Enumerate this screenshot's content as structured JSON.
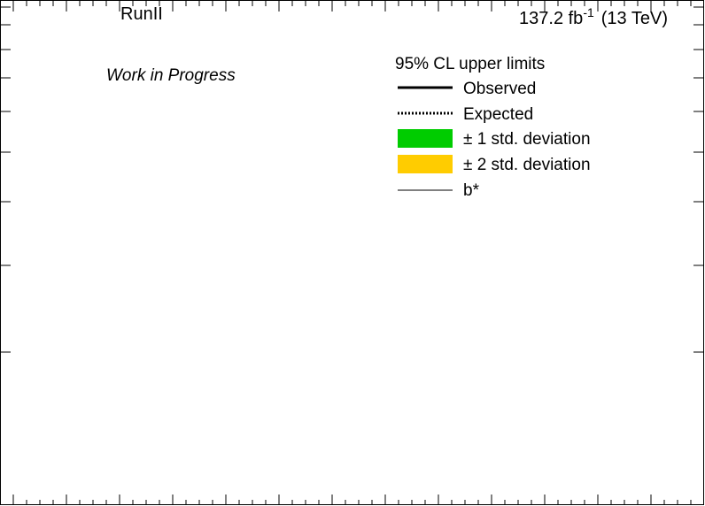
{
  "chart_data": {
    "type": "line",
    "title": "",
    "xlabel": "",
    "ylabel": "",
    "y_log_scale": true,
    "grid": false,
    "labels": {
      "top_left": "RunII",
      "lumi_value": "137.2 fb",
      "lumi_exponent": "-1",
      "lumi_energy": "(13 TeV)",
      "status": "Work in Progress"
    },
    "legend": {
      "placement": "top-right",
      "header": "95% CL upper limits",
      "entries": [
        {
          "label": "Observed",
          "style": "solid-thick",
          "color": "#000000"
        },
        {
          "label": "Expected",
          "style": "dotted-thick",
          "color": "#000000"
        },
        {
          "label": "± 1 std. deviation",
          "style": "fill",
          "color": "#00cc00"
        },
        {
          "label": "± 2 std. deviation",
          "style": "fill",
          "color": "#ffcc00"
        },
        {
          "label": "b*",
          "style": "solid-thin",
          "color": "#000000"
        }
      ]
    },
    "series": []
  }
}
